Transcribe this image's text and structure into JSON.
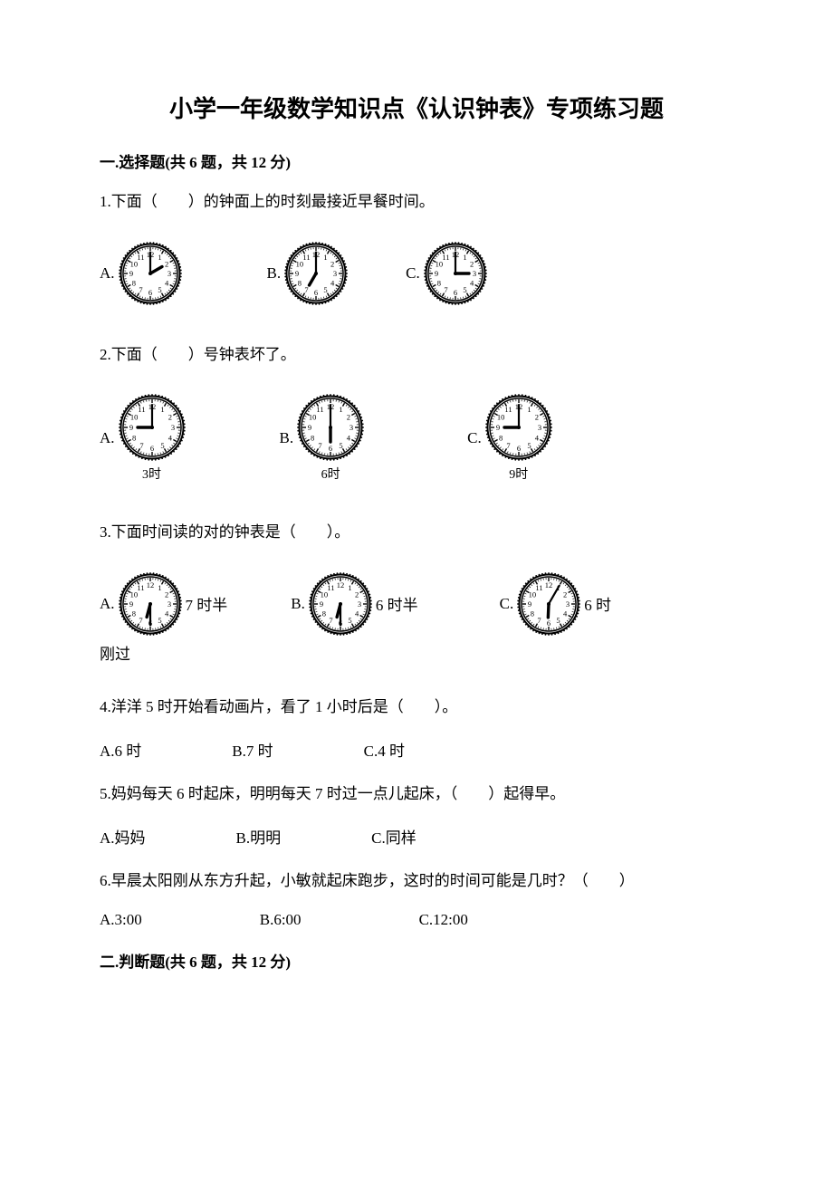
{
  "title": "小学一年级数学知识点《认识钟表》专项练习题",
  "section1": {
    "header": "一.选择题(共 6 题，共 12 分)",
    "q1": {
      "text": "1.下面（　　）的钟面上的时刻最接近早餐时间。",
      "opts": [
        {
          "label": "A.",
          "clock": {
            "hour": 2,
            "minute": 0,
            "size": 70
          }
        },
        {
          "label": "B.",
          "clock": {
            "hour": 7,
            "minute": 0,
            "size": 70
          }
        },
        {
          "label": "C.",
          "clock": {
            "hour": 3,
            "minute": 0,
            "size": 70
          }
        }
      ]
    },
    "q2": {
      "text": "2.下面（　　）号钟表坏了。",
      "opts": [
        {
          "label": "A.",
          "clock": {
            "hour": 9,
            "minute": 0,
            "size": 74
          },
          "caption": "3时"
        },
        {
          "label": "B.",
          "clock": {
            "hour": 6,
            "minute": 0,
            "size": 74
          },
          "caption": "6时"
        },
        {
          "label": "C.",
          "clock": {
            "hour": 9,
            "minute": 0,
            "size": 74
          },
          "caption": "9时"
        }
      ]
    },
    "q3": {
      "text": "3.下面时间读的对的钟表是（　　）。",
      "opts": [
        {
          "label": "A.",
          "clock": {
            "hour": 6,
            "minute": 30,
            "size": 70
          },
          "after": "7 时半"
        },
        {
          "label": "B.",
          "clock": {
            "hour": 6,
            "minute": 30,
            "size": 70
          },
          "after": "6 时半"
        },
        {
          "label": "C.",
          "clock": {
            "hour": 6,
            "minute": 5,
            "size": 70
          },
          "after": "6 时"
        }
      ],
      "tail": "刚过"
    },
    "q4": {
      "text": "4.洋洋 5 时开始看动画片，看了 1 小时后是（　　）。",
      "opts": [
        "A.6 时",
        "B.7 时",
        "C.4 时"
      ]
    },
    "q5": {
      "text": "5.妈妈每天 6 时起床，明明每天 7 时过一点儿起床，（　　）起得早。",
      "opts": [
        "A.妈妈",
        "B.明明",
        "C.同样"
      ]
    },
    "q6": {
      "text": "6.早晨太阳刚从东方升起，小敏就起床跑步，这时的时间可能是几时？（　　）",
      "opts": [
        "A.3:00",
        "B.6:00",
        "C.12:00"
      ]
    }
  },
  "section2": {
    "header": "二.判断题(共 6 题，共 12 分)"
  },
  "clockStyle": {
    "stroke": "#000000",
    "fill": "#ffffff",
    "tickColor": "#000000",
    "numColor": "#000000",
    "handColor": "#000000",
    "minuteLen": 0.78,
    "hourLen": 0.5,
    "minuteWidth": 2.2,
    "hourWidth": 3.4,
    "outerDecor": true
  }
}
